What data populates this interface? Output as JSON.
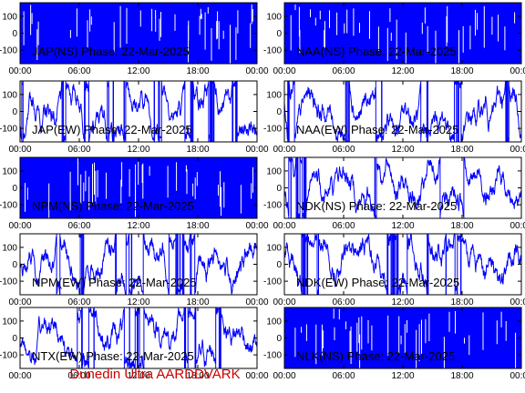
{
  "footer": "Dunedin Ultra AARDDVARK",
  "colors": {
    "trace": "#0000ff",
    "footer": "#cc0000",
    "frame": "#000000"
  },
  "chart_data": [
    {
      "type": "line",
      "title": "JAP(NS) Phase: 22-Mar-2025",
      "x_ticks": [
        "00:00",
        "06:00",
        "12:00",
        "18:00",
        "00:00"
      ],
      "y_ticks": [
        "100",
        "0",
        "-100"
      ],
      "ylim": [
        -180,
        180
      ],
      "trace_style": "saturated",
      "grid": false
    },
    {
      "type": "line",
      "title": "NAA(NS) Phase: 22-Mar-2025",
      "x_ticks": [
        "00:00",
        "06:00",
        "12:00",
        "18:00",
        "00:00"
      ],
      "y_ticks": [
        "100",
        "0",
        "-100"
      ],
      "ylim": [
        -180,
        180
      ],
      "trace_style": "saturated",
      "grid": false
    },
    {
      "type": "line",
      "title": "JAP(EW) Phase: 22-Mar-2025",
      "x_ticks": [
        "00:00",
        "06:00",
        "12:00",
        "18:00",
        "00:00"
      ],
      "y_ticks": [
        "100",
        "0",
        "-100"
      ],
      "ylim": [
        -180,
        180
      ],
      "trace_style": "wrapping",
      "grid": false
    },
    {
      "type": "line",
      "title": "NAA(EW) Phase: 22-Mar-2025",
      "x_ticks": [
        "00:00",
        "06:00",
        "12:00",
        "18:00",
        "00:00"
      ],
      "y_ticks": [
        "100",
        "0",
        "-100"
      ],
      "ylim": [
        -180,
        180
      ],
      "trace_style": "wrapping",
      "grid": false
    },
    {
      "type": "line",
      "title": "NPM(NS) Phase: 22-Mar-2025",
      "x_ticks": [
        "00:00",
        "06:00",
        "12:00",
        "18:00",
        "00:00"
      ],
      "y_ticks": [
        "100",
        "0",
        "-100"
      ],
      "ylim": [
        -180,
        180
      ],
      "trace_style": "saturated",
      "grid": false
    },
    {
      "type": "line",
      "title": "NDK(NS) Phase: 22-Mar-2025",
      "x_ticks": [
        "00:00",
        "06:00",
        "12:00",
        "18:00",
        "00:00"
      ],
      "y_ticks": [
        "100",
        "0",
        "-100"
      ],
      "ylim": [
        -180,
        180
      ],
      "trace_style": "wrapping",
      "grid": false
    },
    {
      "type": "line",
      "title": "NPM(EW) Phase: 22-Mar-2025",
      "x_ticks": [
        "00:00",
        "06:00",
        "12:00",
        "18:00",
        "00:00"
      ],
      "y_ticks": [
        "100",
        "0",
        "-100"
      ],
      "ylim": [
        -180,
        180
      ],
      "trace_style": "wrapping",
      "grid": false
    },
    {
      "type": "line",
      "title": "NDK(EW) Phase: 22-Mar-2025",
      "x_ticks": [
        "00:00",
        "06:00",
        "12:00",
        "18:00",
        "00:00"
      ],
      "y_ticks": [
        "100",
        "0",
        "-100"
      ],
      "ylim": [
        -180,
        180
      ],
      "trace_style": "wrapping",
      "grid": false
    },
    {
      "type": "line",
      "title": "NTX(EW) Phase: 22-Mar-2025",
      "x_ticks": [
        "00:00",
        "06:00",
        "12:00",
        "18:00",
        "00:00"
      ],
      "y_ticks": [
        "100",
        "0",
        "-100"
      ],
      "ylim": [
        -180,
        180
      ],
      "trace_style": "wrapping",
      "grid": false
    },
    {
      "type": "line",
      "title": "NLK(NS) Phase: 22-Mar-2025",
      "x_ticks": [
        "00:00",
        "06:00",
        "12:00",
        "18:00",
        "00:00"
      ],
      "y_ticks": [
        "100",
        "0",
        "-100"
      ],
      "ylim": [
        -180,
        180
      ],
      "trace_style": "saturated",
      "grid": false
    }
  ]
}
